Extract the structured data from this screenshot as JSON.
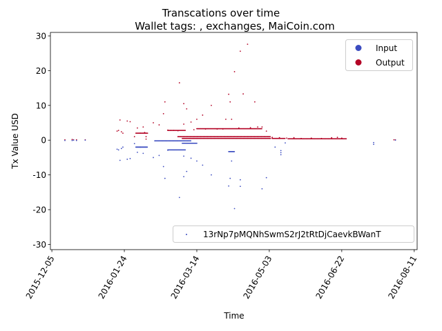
{
  "chart_data": {
    "type": "scatter",
    "title": "Transcations over time",
    "subtitle": "Wallet tags: , exchanges, MaiCoin.com",
    "xlabel": "Time",
    "ylabel": "Tx Value USD",
    "x_ticks": [
      "2015-12-05",
      "2016-01-24",
      "2016-03-14",
      "2016-05-03",
      "2016-06-22",
      "2016-08-11"
    ],
    "y_ticks": [
      -30,
      -20,
      -10,
      0,
      10,
      20,
      30
    ],
    "xlim": [
      "2015-12-04",
      "2016-08-13"
    ],
    "ylim": [
      -31.5,
      31
    ],
    "grid": false,
    "legend_series": {
      "position": "top-right",
      "entries": [
        {
          "label": "Input",
          "color": "#3b4cc0"
        },
        {
          "label": "Output",
          "color": "#b40426"
        }
      ]
    },
    "legend_address": {
      "position": "bottom-right",
      "label": "13rNp7pMQNhSwmS2rJ2tRtDjCaevkBWanT",
      "color": "#3b4cc0"
    },
    "series": [
      {
        "name": "Output",
        "color": "#b40426",
        "points": [
          [
            "2015-12-14",
            0.1
          ],
          [
            "2015-12-19",
            0.2
          ],
          [
            "2015-12-20",
            0.1
          ],
          [
            "2015-12-22",
            0.1
          ],
          [
            "2015-12-28",
            0.1
          ],
          [
            "2016-01-19",
            2.6
          ],
          [
            "2016-01-20",
            2.8
          ],
          [
            "2016-01-21",
            5.8
          ],
          [
            "2016-01-22",
            2.4
          ],
          [
            "2016-01-23",
            2.0
          ],
          [
            "2016-01-26",
            5.5
          ],
          [
            "2016-01-28",
            5.3
          ],
          [
            "2016-01-31",
            1.0
          ],
          [
            "2016-02-02",
            3.5
          ],
          [
            "2016-02-04",
            2.0
          ],
          [
            "2016-02-06",
            3.8
          ],
          [
            "2016-02-07",
            2.2
          ],
          [
            "2016-02-08",
            1.0
          ],
          [
            "2016-02-08",
            0.3
          ],
          [
            "2016-02-13",
            5.0
          ],
          [
            "2016-02-17",
            4.4
          ],
          [
            "2016-02-20",
            7.6
          ],
          [
            "2016-02-21",
            11.0
          ],
          [
            "2016-02-23",
            2.9
          ],
          [
            "2016-02-25",
            2.8
          ],
          [
            "2016-02-27",
            2.8
          ],
          [
            "2016-03-01",
            2.7
          ],
          [
            "2016-03-02",
            16.5
          ],
          [
            "2016-03-05",
            10.5
          ],
          [
            "2016-03-05",
            4.6
          ],
          [
            "2016-03-07",
            9.0
          ],
          [
            "2016-03-10",
            5.2
          ],
          [
            "2016-03-12",
            3.0
          ],
          [
            "2016-03-14",
            6.0
          ],
          [
            "2016-03-18",
            7.2
          ],
          [
            "2016-03-20",
            3.2
          ],
          [
            "2016-03-24",
            10.0
          ],
          [
            "2016-03-28",
            3.2
          ],
          [
            "2016-04-01",
            3.2
          ],
          [
            "2016-04-03",
            6.0
          ],
          [
            "2016-04-05",
            13.2
          ],
          [
            "2016-04-06",
            11.0
          ],
          [
            "2016-04-07",
            6.0
          ],
          [
            "2016-04-09",
            19.7
          ],
          [
            "2016-04-12",
            3.5
          ],
          [
            "2016-04-13",
            25.6
          ],
          [
            "2016-04-15",
            13.3
          ],
          [
            "2016-04-18",
            27.6
          ],
          [
            "2016-04-20",
            3.6
          ],
          [
            "2016-04-23",
            11.0
          ],
          [
            "2016-04-25",
            3.8
          ],
          [
            "2016-04-28",
            3.8
          ],
          [
            "2016-05-01",
            2.6
          ],
          [
            "2016-05-05",
            0.8
          ],
          [
            "2016-05-10",
            0.7
          ],
          [
            "2016-05-15",
            0.6
          ],
          [
            "2016-05-20",
            0.7
          ],
          [
            "2016-05-25",
            0.5
          ],
          [
            "2016-06-01",
            0.6
          ],
          [
            "2016-06-08",
            0.5
          ],
          [
            "2016-06-15",
            0.7
          ],
          [
            "2016-06-19",
            0.8
          ],
          [
            "2016-06-22",
            0.6
          ],
          [
            "2016-06-25",
            0.4
          ],
          [
            "2016-07-28",
            0.1
          ],
          [
            "2016-07-29",
            0.1
          ]
        ],
        "bands": [
          {
            "from": "2016-02-01",
            "to": "2016-02-09",
            "y": 2.0,
            "step": 0.4
          },
          {
            "from": "2016-02-23",
            "to": "2016-03-06",
            "y": 2.8,
            "step": 0.5
          },
          {
            "from": "2016-03-04",
            "to": "2016-05-04",
            "y": 0.5,
            "step": 0.4
          },
          {
            "from": "2016-03-14",
            "to": "2016-04-28",
            "y": 3.3,
            "step": 0.4
          },
          {
            "from": "2016-03-01",
            "to": "2016-05-04",
            "y": 1.0,
            "step": 0.6
          },
          {
            "from": "2016-05-05",
            "to": "2016-05-14",
            "y": 0.5,
            "step": 0.4
          },
          {
            "from": "2016-05-16",
            "to": "2016-06-25",
            "y": 0.4,
            "step": 0.4
          }
        ]
      },
      {
        "name": "Input",
        "color": "#3b4cc0",
        "points": [
          [
            "2015-12-14",
            -0.1
          ],
          [
            "2015-12-19",
            -0.1
          ],
          [
            "2015-12-20",
            0.0
          ],
          [
            "2015-12-22",
            -0.1
          ],
          [
            "2015-12-28",
            0.0
          ],
          [
            "2016-01-19",
            -2.6
          ],
          [
            "2016-01-20",
            -2.8
          ],
          [
            "2016-01-21",
            -5.8
          ],
          [
            "2016-01-22",
            -2.4
          ],
          [
            "2016-01-23",
            -2.0
          ],
          [
            "2016-01-26",
            -5.5
          ],
          [
            "2016-01-28",
            -5.3
          ],
          [
            "2016-01-31",
            -1.0
          ],
          [
            "2016-02-02",
            -3.5
          ],
          [
            "2016-02-04",
            -2.0
          ],
          [
            "2016-02-06",
            -3.8
          ],
          [
            "2016-02-13",
            -5.0
          ],
          [
            "2016-02-17",
            -4.4
          ],
          [
            "2016-02-20",
            -7.6
          ],
          [
            "2016-02-21",
            -11.0
          ],
          [
            "2016-02-23",
            -2.9
          ],
          [
            "2016-03-02",
            -16.5
          ],
          [
            "2016-03-05",
            -10.5
          ],
          [
            "2016-03-05",
            -4.6
          ],
          [
            "2016-03-07",
            -9.0
          ],
          [
            "2016-03-10",
            -5.2
          ],
          [
            "2016-03-14",
            -6.0
          ],
          [
            "2016-03-18",
            -7.2
          ],
          [
            "2016-03-24",
            -10.0
          ],
          [
            "2016-04-05",
            -13.2
          ],
          [
            "2016-04-06",
            -11.0
          ],
          [
            "2016-04-07",
            -6.0
          ],
          [
            "2016-04-09",
            -19.7
          ],
          [
            "2016-04-13",
            -13.3
          ],
          [
            "2016-04-13",
            -11.4
          ],
          [
            "2016-04-28",
            -14.0
          ],
          [
            "2016-05-01",
            -10.8
          ],
          [
            "2016-05-07",
            -2.0
          ],
          [
            "2016-05-11",
            -4.2
          ],
          [
            "2016-05-11",
            -3.6
          ],
          [
            "2016-05-11",
            -3.0
          ],
          [
            "2016-05-14",
            -0.8
          ],
          [
            "2016-07-14",
            -1.2
          ],
          [
            "2016-07-14",
            -0.7
          ],
          [
            "2016-07-29",
            0.0
          ]
        ],
        "bands": [
          {
            "from": "2016-02-01",
            "to": "2016-02-09",
            "y": -2.0,
            "step": 0.3
          },
          {
            "from": "2016-02-14",
            "to": "2016-03-10",
            "y": -0.2,
            "step": 0.4
          },
          {
            "from": "2016-02-23",
            "to": "2016-03-06",
            "y": -2.8,
            "step": 0.5
          },
          {
            "from": "2016-03-04",
            "to": "2016-03-14",
            "y": -0.9,
            "step": 0.5
          },
          {
            "from": "2016-04-05",
            "to": "2016-04-09",
            "y": -3.3,
            "step": 0.3
          }
        ]
      }
    ]
  }
}
